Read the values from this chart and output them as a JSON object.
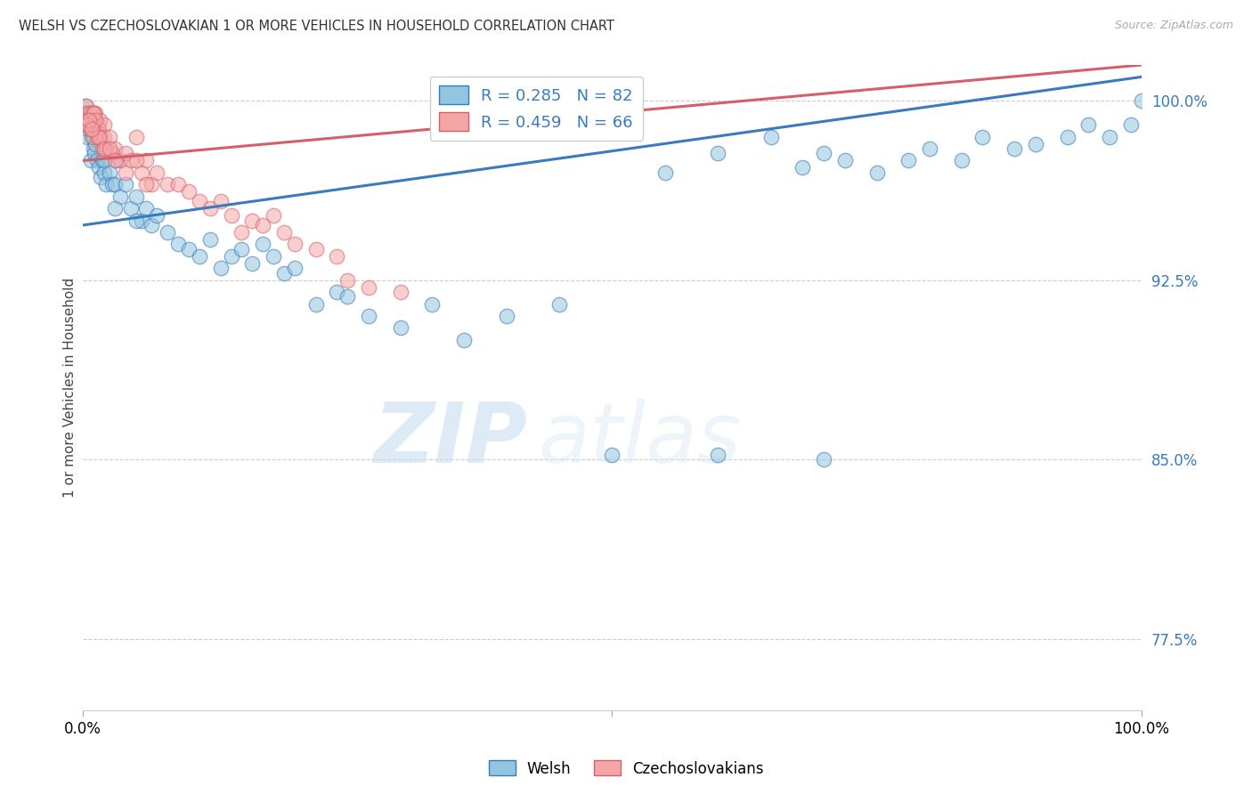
{
  "title": "WELSH VS CZECHOSLOVAKIAN 1 OR MORE VEHICLES IN HOUSEHOLD CORRELATION CHART",
  "source": "Source: ZipAtlas.com",
  "ylabel": "1 or more Vehicles in Household",
  "y_ticks": [
    77.5,
    85.0,
    92.5,
    100.0
  ],
  "y_tick_labels": [
    "77.5%",
    "85.0%",
    "92.5%",
    "100.0%"
  ],
  "welsh_color": "#92c5de",
  "czech_color": "#f4a6a6",
  "welsh_line_color": "#3a7abf",
  "czech_line_color": "#d45f6a",
  "background_color": "#ffffff",
  "xlim": [
    0,
    100
  ],
  "ylim": [
    74.5,
    101.5
  ],
  "welsh_x": [
    0.2,
    0.3,
    0.4,
    0.5,
    0.5,
    0.6,
    0.7,
    0.8,
    0.9,
    1.0,
    1.0,
    1.1,
    1.2,
    1.3,
    1.4,
    1.5,
    1.6,
    1.7,
    1.8,
    2.0,
    2.0,
    2.2,
    2.5,
    2.8,
    3.0,
    3.2,
    3.5,
    4.0,
    4.5,
    5.0,
    5.5,
    6.0,
    6.5,
    7.0,
    8.0,
    9.0,
    10.0,
    11.0,
    12.0,
    13.0,
    14.0,
    15.0,
    16.0,
    17.0,
    18.0,
    19.0,
    20.0,
    22.0,
    24.0,
    25.0,
    27.0,
    30.0,
    33.0,
    36.0,
    40.0,
    45.0,
    50.0,
    55.0,
    60.0,
    65.0,
    68.0,
    70.0,
    72.0,
    75.0,
    78.0,
    80.0,
    83.0,
    85.0,
    88.0,
    90.0,
    93.0,
    95.0,
    97.0,
    99.0,
    100.0,
    60.0,
    70.0,
    0.3,
    0.5,
    2.0,
    3.0,
    5.0
  ],
  "welsh_y": [
    99.8,
    99.2,
    98.5,
    99.5,
    98.8,
    99.0,
    97.5,
    98.5,
    99.0,
    98.0,
    99.5,
    97.8,
    98.2,
    97.5,
    98.8,
    97.2,
    98.5,
    96.8,
    97.5,
    98.0,
    97.0,
    96.5,
    97.0,
    96.5,
    96.5,
    97.5,
    96.0,
    96.5,
    95.5,
    96.0,
    95.0,
    95.5,
    94.8,
    95.2,
    94.5,
    94.0,
    93.8,
    93.5,
    94.2,
    93.0,
    93.5,
    93.8,
    93.2,
    94.0,
    93.5,
    92.8,
    93.0,
    91.5,
    92.0,
    91.8,
    91.0,
    90.5,
    91.5,
    90.0,
    91.0,
    91.5,
    85.2,
    97.0,
    97.8,
    98.5,
    97.2,
    97.8,
    97.5,
    97.0,
    97.5,
    98.0,
    97.5,
    98.5,
    98.0,
    98.2,
    98.5,
    99.0,
    98.5,
    99.0,
    100.0,
    85.2,
    85.0,
    99.5,
    99.0,
    97.5,
    95.5,
    95.0
  ],
  "czech_x": [
    0.2,
    0.3,
    0.4,
    0.5,
    0.6,
    0.7,
    0.8,
    0.9,
    1.0,
    1.0,
    1.1,
    1.2,
    1.3,
    1.4,
    1.5,
    1.6,
    1.7,
    1.8,
    2.0,
    2.0,
    2.2,
    2.5,
    2.8,
    3.0,
    3.5,
    4.0,
    4.5,
    5.0,
    5.5,
    6.0,
    6.5,
    7.0,
    8.0,
    9.0,
    10.0,
    11.0,
    12.0,
    13.0,
    14.0,
    15.0,
    16.0,
    17.0,
    18.0,
    19.0,
    20.0,
    22.0,
    24.0,
    25.0,
    27.0,
    30.0,
    0.3,
    0.5,
    0.7,
    0.9,
    1.0,
    1.2,
    1.5,
    2.0,
    2.5,
    3.0,
    4.0,
    5.0,
    6.0,
    0.4,
    0.6,
    0.8
  ],
  "czech_y": [
    99.5,
    99.8,
    99.2,
    99.5,
    99.0,
    99.5,
    98.8,
    99.2,
    98.5,
    99.5,
    99.0,
    99.5,
    98.5,
    99.0,
    98.8,
    99.2,
    98.5,
    98.0,
    99.0,
    98.5,
    98.0,
    98.5,
    97.8,
    98.0,
    97.5,
    97.8,
    97.5,
    98.5,
    97.0,
    97.5,
    96.5,
    97.0,
    96.5,
    96.5,
    96.2,
    95.8,
    95.5,
    95.8,
    95.2,
    94.5,
    95.0,
    94.8,
    95.2,
    94.5,
    94.0,
    93.8,
    93.5,
    92.5,
    92.2,
    92.0,
    99.0,
    99.2,
    98.8,
    99.0,
    99.5,
    99.2,
    98.5,
    98.0,
    98.0,
    97.5,
    97.0,
    97.5,
    96.5,
    99.0,
    99.2,
    98.8
  ],
  "welsh_line_x0": 0,
  "welsh_line_y0": 94.8,
  "welsh_line_x1": 100,
  "welsh_line_y1": 101.0,
  "czech_line_x0": 0,
  "czech_line_y0": 97.5,
  "czech_line_x1": 100,
  "czech_line_y1": 101.5
}
